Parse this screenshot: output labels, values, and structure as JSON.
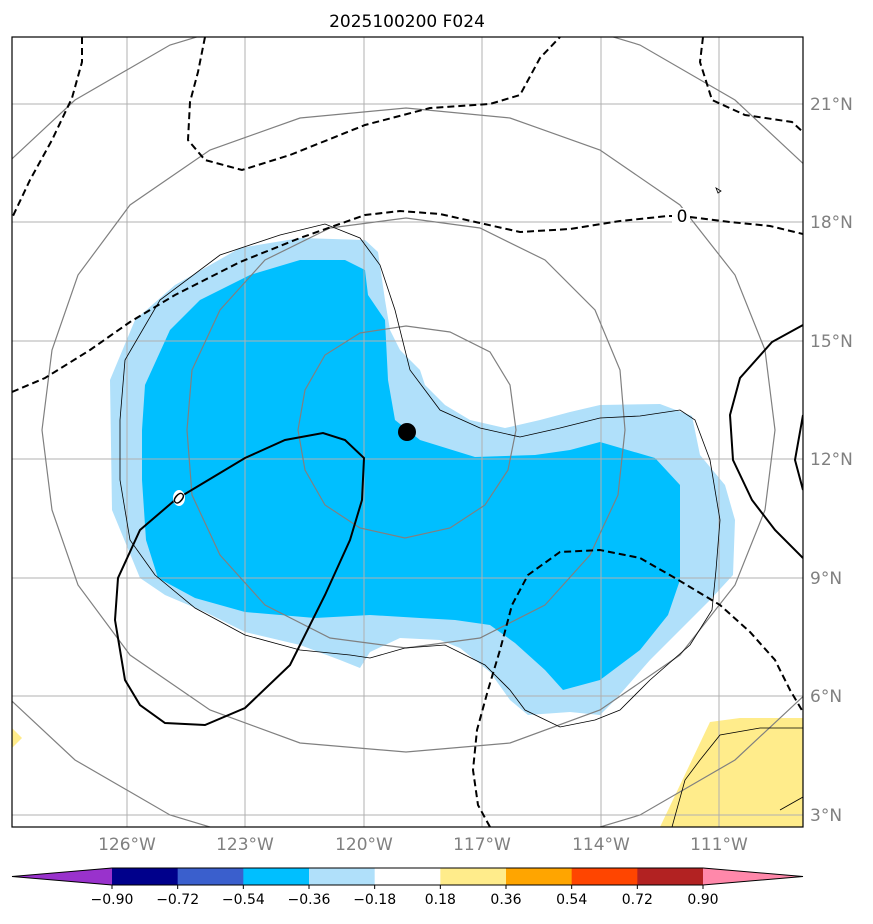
{
  "title": "2025100200 F024",
  "map": {
    "lat_labels": [
      "3°N",
      "6°N",
      "9°N",
      "12°N",
      "15°N",
      "18°N",
      "21°N"
    ],
    "lon_labels": [
      "126°W",
      "123°W",
      "120°W",
      "117°W",
      "114°W",
      "111°W"
    ],
    "contour_labels": [
      "0",
      "0"
    ],
    "center_marker": "storm-center-dot"
  },
  "colorbar": {
    "ticks": [
      "−0.90",
      "−0.72",
      "−0.54",
      "−0.36",
      "−0.18",
      "0.18",
      "0.36",
      "0.54",
      "0.72",
      "0.90"
    ],
    "colors": [
      "#9932cc",
      "#00008b",
      "#3a5fcd",
      "#00bfff",
      "#b0e0fa",
      "#ffffff",
      "#ffec8b",
      "#ffa500",
      "#ff4500",
      "#b22222",
      "#ff88aa"
    ]
  },
  "colors": {
    "fill_light_blue": "#b0e0fa",
    "fill_blue": "#00bfff",
    "fill_yellow": "#ffec8b",
    "grid": "#b0b0b0",
    "range_rings": "#808080"
  }
}
